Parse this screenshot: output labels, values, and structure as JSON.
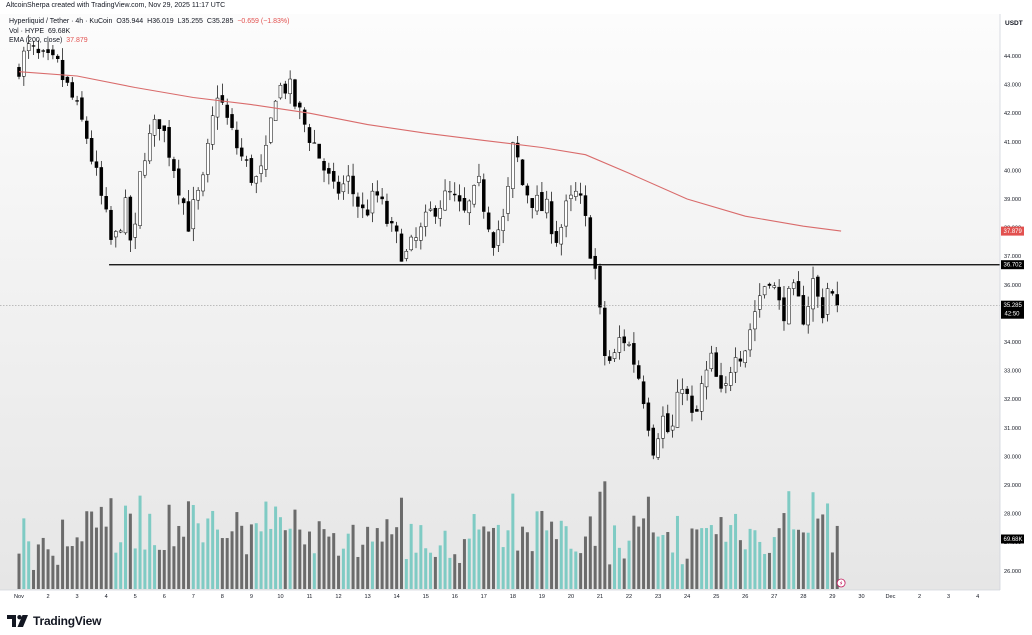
{
  "credit": "AltcoinSherpa created with TradingView.com, Nov 29, 2025 11:17 UTC",
  "legend": {
    "symbol": "Hyperliquid / Tether · 4h · KuCoin",
    "open_label": "O",
    "open": "35.944",
    "high_label": "H",
    "high": "36.019",
    "low_label": "L",
    "low": "35.255",
    "close_label": "C",
    "close": "35.285",
    "change": "−0.659 (−1.83%)",
    "vol_label": "Vol · HYPE",
    "vol_value": "69.68K",
    "ema_label": "EMA (200, close)",
    "ema_value": "37.879"
  },
  "axis": {
    "currency": "USDT",
    "price_ticks": [
      "44.000",
      "43.000",
      "42.000",
      "41.000",
      "40.000",
      "39.000",
      "38.000",
      "37.000",
      "36.000",
      "35.000",
      "34.000",
      "33.000",
      "32.000",
      "31.000",
      "30.000",
      "29.000",
      "28.000",
      "27.000",
      "26.000"
    ],
    "date_ticks": [
      "Nov",
      "2",
      "3",
      "4",
      "5",
      "6",
      "7",
      "8",
      "9",
      "10",
      "11",
      "12",
      "13",
      "14",
      "15",
      "16",
      "17",
      "18",
      "19",
      "20",
      "21",
      "22",
      "23",
      "24",
      "25",
      "26",
      "27",
      "28",
      "29",
      "30",
      "Dec",
      "2",
      "3",
      "4"
    ]
  },
  "badges": {
    "ema": "37.879",
    "level": "36.702",
    "price": "35.285",
    "countdown": "42:50",
    "volume": "69.68K"
  },
  "colors": {
    "up": "#ffffff",
    "down": "#000000",
    "wick": "#000000",
    "ema": "#d96b6b",
    "vol_up": "#7fcbc4",
    "vol_down": "#6b6b6b",
    "level_line": "#000000"
  },
  "footer": {
    "brand": "TradingView"
  },
  "chart_data": {
    "type": "candlestick",
    "timeframe": "4h",
    "horizontal_level": 36.702,
    "current_price": 35.285,
    "ema_200_last": 37.879,
    "y_range": [
      25.2,
      45.3
    ],
    "x_range": [
      "Nov 1",
      "Dec 4"
    ],
    "series": [
      {
        "name": "Price",
        "anchors": [
          [
            "Nov 1",
            43.5
          ],
          [
            "Nov 1.5",
            44.2
          ],
          [
            "Nov 2",
            43.8
          ],
          [
            "Nov 2.5",
            43.6
          ],
          [
            "Nov 3",
            42.5
          ],
          [
            "Nov 3.5",
            41.2
          ],
          [
            "Nov 4",
            39.0
          ],
          [
            "Nov 4.4",
            37.2
          ],
          [
            "Nov 4.8",
            38.8
          ],
          [
            "Nov 5.1",
            37.0
          ],
          [
            "Nov 5.4",
            40.5
          ],
          [
            "Nov 6",
            41.8
          ],
          [
            "Nov 6.5",
            40.2
          ],
          [
            "Nov 7",
            38.2
          ],
          [
            "Nov 7.5",
            39.5
          ],
          [
            "Nov 8",
            42.8
          ],
          [
            "Nov 8.4",
            41.5
          ],
          [
            "Nov 8.8",
            40.5
          ],
          [
            "Nov 9.3",
            39.6
          ],
          [
            "Nov 9.6",
            40.0
          ],
          [
            "Nov 10",
            42.8
          ],
          [
            "Nov 10.4",
            43.0
          ],
          [
            "Nov 10.8",
            42.0
          ],
          [
            "Nov 11.3",
            41.0
          ],
          [
            "Nov 11.7",
            40.0
          ],
          [
            "Nov 12",
            39.2
          ],
          [
            "Nov 12.5",
            39.6
          ],
          [
            "Nov 13",
            38.5
          ],
          [
            "Nov 13.5",
            39.1
          ],
          [
            "Nov 14",
            37.8
          ],
          [
            "Nov 14.5",
            37.0
          ],
          [
            "Nov 15",
            37.8
          ],
          [
            "Nov 15.5",
            38.8
          ],
          [
            "Nov 16",
            39.1
          ],
          [
            "Nov 16.5",
            38.4
          ],
          [
            "Nov 17",
            39.4
          ],
          [
            "Nov 17.5",
            37.7
          ],
          [
            "Nov 17.9",
            38.3
          ],
          [
            "Nov 18.2",
            41.0
          ],
          [
            "Nov 18.5",
            39.5
          ],
          [
            "Nov 19",
            38.8
          ],
          [
            "Nov 19.4",
            38.5
          ],
          [
            "Nov 19.7",
            37.6
          ],
          [
            "Nov 20",
            38.6
          ],
          [
            "Nov 20.4",
            39.2
          ],
          [
            "Nov 20.7",
            38.0
          ],
          [
            "Nov 21",
            36.5
          ],
          [
            "Nov 21.3",
            33.6
          ],
          [
            "Nov 21.6",
            33.2
          ],
          [
            "Nov 21.9",
            34.3
          ],
          [
            "Nov 22.2",
            33.8
          ],
          [
            "Nov 22.6",
            32.5
          ],
          [
            "Nov 23",
            30.4
          ],
          [
            "Nov 23.3",
            31.4
          ],
          [
            "Nov 23.6",
            30.6
          ],
          [
            "Nov 24",
            32.7
          ],
          [
            "Nov 24.4",
            31.0
          ],
          [
            "Nov 24.7",
            32.5
          ],
          [
            "Nov 25",
            33.3
          ],
          [
            "Nov 25.4",
            31.8
          ],
          [
            "Nov 25.8",
            33.9
          ],
          [
            "Nov 26.1",
            33.6
          ],
          [
            "Nov 26.6",
            35.5
          ],
          [
            "Nov 27",
            36.4
          ],
          [
            "Nov 27.4",
            35.0
          ],
          [
            "Nov 27.8",
            35.7
          ],
          [
            "Nov 28.2",
            34.9
          ],
          [
            "Nov 28.5",
            36.1
          ],
          [
            "Nov 28.8",
            35.0
          ],
          [
            "Nov 29",
            35.9
          ],
          [
            "Nov 29.3",
            35.285
          ]
        ]
      },
      {
        "name": "EMA (200, close)",
        "anchors": [
          [
            "Nov 1",
            43.45
          ],
          [
            "Nov 3",
            43.3
          ],
          [
            "Nov 5",
            42.9
          ],
          [
            "Nov 7",
            42.55
          ],
          [
            "Nov 9",
            42.3
          ],
          [
            "Nov 11",
            42.0
          ],
          [
            "Nov 13",
            41.6
          ],
          [
            "Nov 15",
            41.3
          ],
          [
            "Nov 17",
            41.05
          ],
          [
            "Nov 19",
            40.8
          ],
          [
            "Nov 20.5",
            40.55
          ],
          [
            "Nov 22",
            39.9
          ],
          [
            "Nov 24",
            39.0
          ],
          [
            "Nov 26",
            38.4
          ],
          [
            "Nov 28",
            38.05
          ],
          [
            "Nov 29.3",
            37.879
          ]
        ]
      }
    ]
  }
}
